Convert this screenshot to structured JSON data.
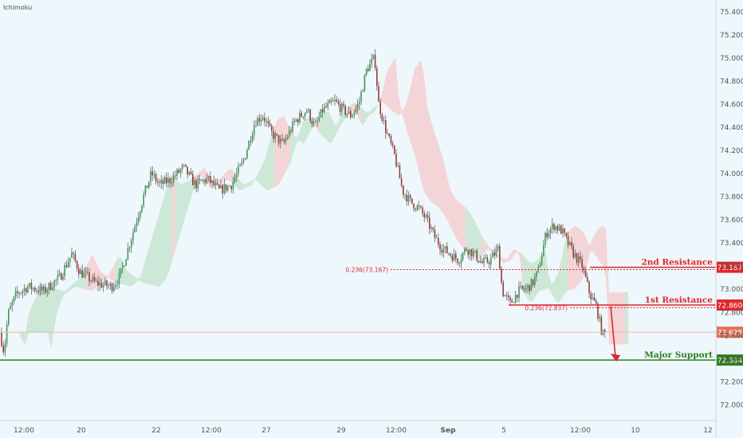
{
  "indicator_label": "Ichimoku",
  "colors": {
    "background": "#eef7fc",
    "up_candle": "#3c9a57",
    "down_candle": "#9c3a36",
    "cloud_bull": "#c7e5cf",
    "cloud_bear": "#f4cfd0",
    "resistance": "#e0272d",
    "support": "#2e7d1e",
    "current_price_line": "#e8b9a8",
    "current_price_badge": "#e07355",
    "axis_text": "#555555"
  },
  "chart_data": {
    "type": "candlestick",
    "title": "",
    "xlabel": "",
    "ylabel": "",
    "ylim": [
      71.88,
      75.5
    ],
    "y_ticks": [
      "75.400",
      "75.200",
      "75.000",
      "74.800",
      "74.600",
      "74.400",
      "74.200",
      "74.000",
      "73.800",
      "73.600",
      "73.400",
      "73.200",
      "73.000",
      "72.800",
      "72.600",
      "72.400",
      "72.200",
      "72.000"
    ],
    "x_ticks": [
      "12:00",
      "20",
      "22",
      "12:00",
      "27",
      "29",
      "12:00",
      "Sep",
      "5",
      "12:00",
      "10",
      "12"
    ],
    "price_path": [
      [
        0,
        72.62
      ],
      [
        5,
        72.45
      ],
      [
        10,
        72.78
      ],
      [
        20,
        72.95
      ],
      [
        35,
        73.02
      ],
      [
        55,
        72.98
      ],
      [
        75,
        73.1
      ],
      [
        90,
        73.3
      ],
      [
        100,
        73.15
      ],
      [
        120,
        73.05
      ],
      [
        140,
        73.02
      ],
      [
        150,
        73.1
      ],
      [
        165,
        73.45
      ],
      [
        180,
        73.8
      ],
      [
        190,
        74.0
      ],
      [
        200,
        73.9
      ],
      [
        215,
        73.95
      ],
      [
        230,
        74.05
      ],
      [
        245,
        73.9
      ],
      [
        260,
        73.95
      ],
      [
        275,
        73.85
      ],
      [
        290,
        73.9
      ],
      [
        305,
        74.1
      ],
      [
        320,
        74.45
      ],
      [
        330,
        74.5
      ],
      [
        340,
        74.35
      ],
      [
        355,
        74.25
      ],
      [
        370,
        74.45
      ],
      [
        385,
        74.55
      ],
      [
        395,
        74.4
      ],
      [
        405,
        74.55
      ],
      [
        420,
        74.62
      ],
      [
        430,
        74.55
      ],
      [
        440,
        74.5
      ],
      [
        450,
        74.6
      ],
      [
        460,
        74.9
      ],
      [
        470,
        75.0
      ],
      [
        475,
        74.6
      ],
      [
        485,
        74.35
      ],
      [
        495,
        74.15
      ],
      [
        505,
        73.85
      ],
      [
        515,
        73.75
      ],
      [
        525,
        73.7
      ],
      [
        535,
        73.6
      ],
      [
        545,
        73.45
      ],
      [
        555,
        73.35
      ],
      [
        565,
        73.3
      ],
      [
        575,
        73.25
      ],
      [
        585,
        73.35
      ],
      [
        595,
        73.3
      ],
      [
        605,
        73.22
      ],
      [
        615,
        73.25
      ],
      [
        625,
        73.35
      ],
      [
        630,
        72.98
      ],
      [
        640,
        72.87
      ],
      [
        650,
        72.98
      ],
      [
        660,
        73.0
      ],
      [
        668,
        73.05
      ],
      [
        675,
        73.15
      ],
      [
        685,
        73.48
      ],
      [
        695,
        73.55
      ],
      [
        705,
        73.5
      ],
      [
        712,
        73.4
      ],
      [
        720,
        73.3
      ],
      [
        730,
        73.2
      ],
      [
        740,
        72.95
      ],
      [
        748,
        72.85
      ],
      [
        752,
        72.72
      ],
      [
        756,
        72.6
      ],
      [
        760,
        72.62
      ]
    ],
    "levels": [
      {
        "name": "2nd Resistance",
        "value": 73.187,
        "label": "73.187",
        "fib_label": "0.236(73.167)",
        "fib_value": 73.167
      },
      {
        "name": "1st Resistance",
        "value": 72.86,
        "label": "72.860",
        "fib_label": "0.236(72.837)",
        "fib_value": 72.837
      },
      {
        "name": "Major Support",
        "value": 72.384,
        "label": "72.384"
      }
    ],
    "current_price": {
      "value": 72.625,
      "label": "72.625"
    },
    "forecast_arrow": {
      "from": 72.85,
      "to": 72.384
    }
  }
}
